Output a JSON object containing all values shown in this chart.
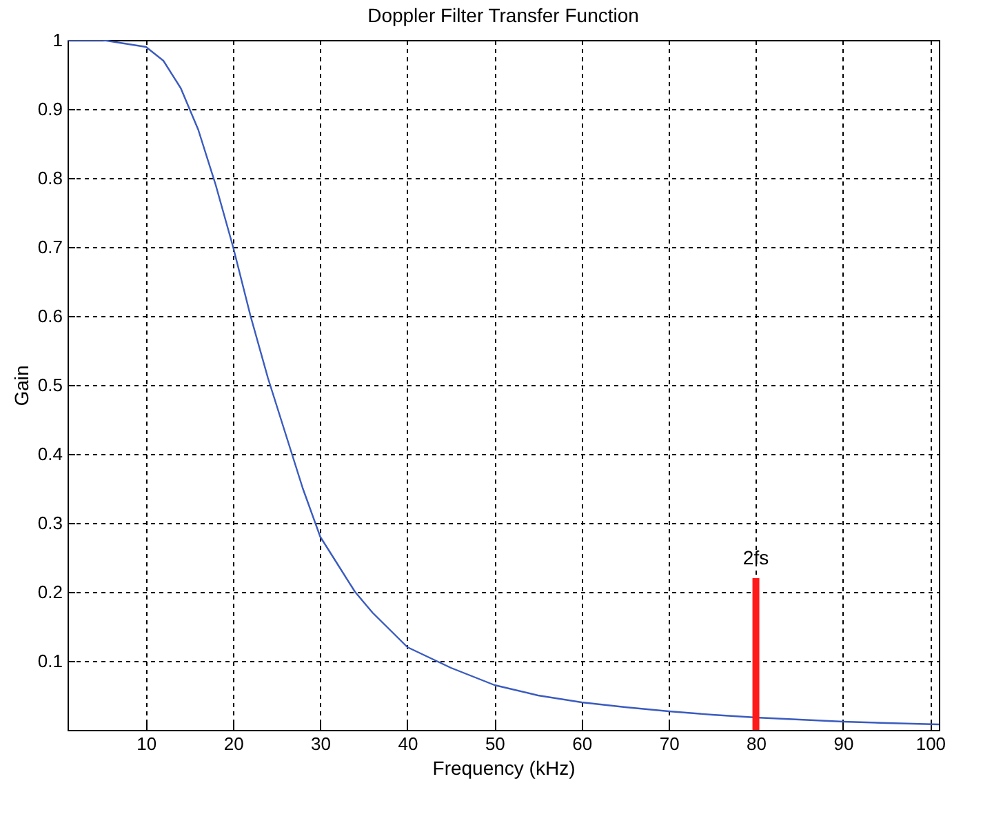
{
  "chart_data": {
    "type": "line",
    "title": "Doppler Filter Transfer Function",
    "xlabel": "Frequency (kHz)",
    "ylabel": "Gain",
    "xlim": [
      1,
      101
    ],
    "ylim": [
      0,
      1
    ],
    "xticks": [
      10,
      20,
      30,
      40,
      50,
      60,
      70,
      80,
      90,
      100
    ],
    "yticks": [
      0.1,
      0.2,
      0.3,
      0.4,
      0.5,
      0.6,
      0.7,
      0.8,
      0.9,
      1
    ],
    "grid": true,
    "series": [
      {
        "color": "#3a5bbf",
        "x": [
          1,
          5,
          10,
          12,
          14,
          16,
          18,
          20,
          22,
          24,
          26,
          28,
          30,
          32,
          34,
          36,
          38,
          40,
          45,
          50,
          55,
          60,
          65,
          70,
          75,
          80,
          85,
          90,
          95,
          101
        ],
        "values": [
          1.0,
          1.0,
          0.99,
          0.97,
          0.93,
          0.87,
          0.79,
          0.7,
          0.6,
          0.51,
          0.43,
          0.35,
          0.28,
          0.24,
          0.2,
          0.17,
          0.145,
          0.12,
          0.09,
          0.065,
          0.05,
          0.04,
          0.033,
          0.027,
          0.022,
          0.018,
          0.015,
          0.012,
          0.01,
          0.008
        ]
      },
      {
        "type": "bar",
        "color": "#ff1a1a",
        "x": [
          80
        ],
        "values": [
          0.22
        ]
      }
    ],
    "annotations": [
      {
        "text": "2fs",
        "x": 80,
        "y": 0.22
      }
    ]
  }
}
